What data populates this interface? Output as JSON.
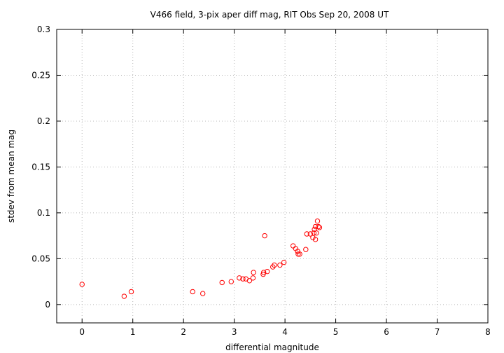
{
  "chart_data": {
    "type": "scatter",
    "title": "V466 field,  3-pix aper diff mag, RIT Obs Sep 20, 2008 UT",
    "xlabel": "differential magnitude",
    "ylabel": "stdev from mean mag",
    "xlim": [
      -0.5,
      8
    ],
    "ylim": [
      -0.02,
      0.3
    ],
    "xticks": [
      0,
      1,
      2,
      3,
      4,
      5,
      6,
      7,
      8
    ],
    "yticks": [
      0,
      0.05,
      0.1,
      0.15,
      0.2,
      0.25,
      0.3
    ],
    "xtick_labels": [
      "0",
      "1",
      "2",
      "3",
      "4",
      "5",
      "6",
      "7",
      "8"
    ],
    "ytick_labels": [
      "0",
      "0.05",
      "0.1",
      "0.15",
      "0.2",
      "0.25",
      "0.3"
    ],
    "grid": true,
    "marker": "open-circle",
    "color": "#ff0000",
    "points": [
      [
        0.0,
        0.022
      ],
      [
        0.83,
        0.009
      ],
      [
        0.97,
        0.014
      ],
      [
        2.18,
        0.014
      ],
      [
        2.38,
        0.012
      ],
      [
        2.76,
        0.024
      ],
      [
        2.94,
        0.025
      ],
      [
        3.1,
        0.029
      ],
      [
        3.17,
        0.028
      ],
      [
        3.23,
        0.028
      ],
      [
        3.3,
        0.026
      ],
      [
        3.37,
        0.029
      ],
      [
        3.38,
        0.035
      ],
      [
        3.57,
        0.033
      ],
      [
        3.58,
        0.035
      ],
      [
        3.6,
        0.075
      ],
      [
        3.65,
        0.036
      ],
      [
        3.76,
        0.041
      ],
      [
        3.79,
        0.043
      ],
      [
        3.9,
        0.043
      ],
      [
        3.98,
        0.046
      ],
      [
        4.16,
        0.064
      ],
      [
        4.21,
        0.061
      ],
      [
        4.25,
        0.058
      ],
      [
        4.26,
        0.055
      ],
      [
        4.29,
        0.055
      ],
      [
        4.41,
        0.06
      ],
      [
        4.43,
        0.077
      ],
      [
        4.5,
        0.077
      ],
      [
        4.55,
        0.073
      ],
      [
        4.57,
        0.078
      ],
      [
        4.58,
        0.082
      ],
      [
        4.6,
        0.085
      ],
      [
        4.62,
        0.078
      ],
      [
        4.6,
        0.071
      ],
      [
        4.64,
        0.091
      ],
      [
        4.66,
        0.085
      ],
      [
        4.68,
        0.084
      ]
    ]
  }
}
